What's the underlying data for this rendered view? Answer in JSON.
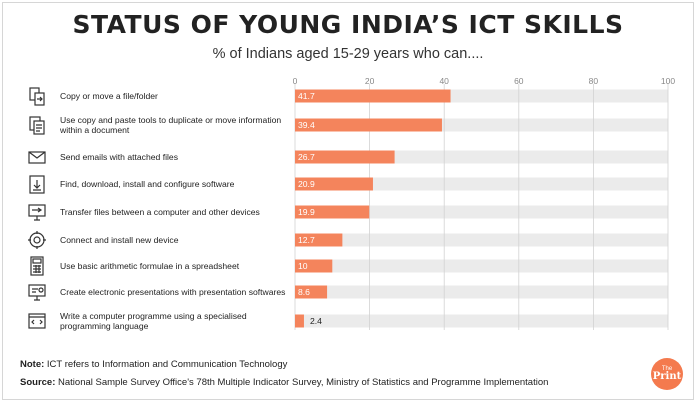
{
  "header": {
    "title": "STATUS OF YOUNG INDIA’S ICT SKILLS",
    "subtitle": "% of Indians aged 15-29 years who can...."
  },
  "footer": {
    "note_label": "Note:",
    "note_text": " ICT refers to Information and Communication Technology",
    "source_label": "Source:",
    "source_text": " National Sample Survey Office's 78th Multiple Indicator Survey, Ministry of Statistics and Programme Implementation",
    "logo_top": "The",
    "logo_bottom": "Print"
  },
  "colors": {
    "bar": "#f4845c",
    "track": "#ebebeb",
    "grid": "#d2d2d2"
  },
  "chart_data": {
    "type": "bar",
    "orientation": "horizontal",
    "xlim": [
      0,
      100
    ],
    "ticks": [
      0,
      20,
      40,
      60,
      80,
      100
    ],
    "grid": true,
    "categories": [
      "Copy or move a file/folder",
      "Use copy and paste tools to duplicate or move information within a document",
      "Send emails with attached files",
      "Find, download, install and configure software",
      "Transfer files between a computer and other devices",
      "Connect and install new device",
      "Use basic arithmetic formulae in a spreadsheet",
      "Create electronic presentations with presentation softwares",
      "Write a computer programme using a specialised programming language"
    ],
    "label_lines": [
      [
        "Copy or move a file/folder"
      ],
      [
        "Use copy and paste tools to duplicate or move information",
        "within a document"
      ],
      [
        "Send emails with attached files"
      ],
      [
        "Find, download, install and configure software"
      ],
      [
        "Transfer files between a computer and other devices"
      ],
      [
        "Connect and install new device"
      ],
      [
        "Use basic arithmetic formulae in a spreadsheet"
      ],
      [
        "Create electronic presentations with presentation softwares"
      ],
      [
        "Write a computer programme using a specialised",
        "programming language"
      ]
    ],
    "icons": [
      "file-transfer-icon",
      "copy-documents-icon",
      "email-attachment-icon",
      "download-icon",
      "monitor-transfer-icon",
      "gear-icon",
      "calculator-icon",
      "presentation-icon",
      "code-window-icon"
    ],
    "values": [
      41.7,
      39.4,
      26.7,
      20.9,
      19.9,
      12.7,
      10,
      8.6,
      2.4
    ],
    "value_labels": [
      "41.7",
      "39.4",
      "26.7",
      "20.9",
      "19.9",
      "12.7",
      "10",
      "8.6",
      "2.4"
    ]
  }
}
